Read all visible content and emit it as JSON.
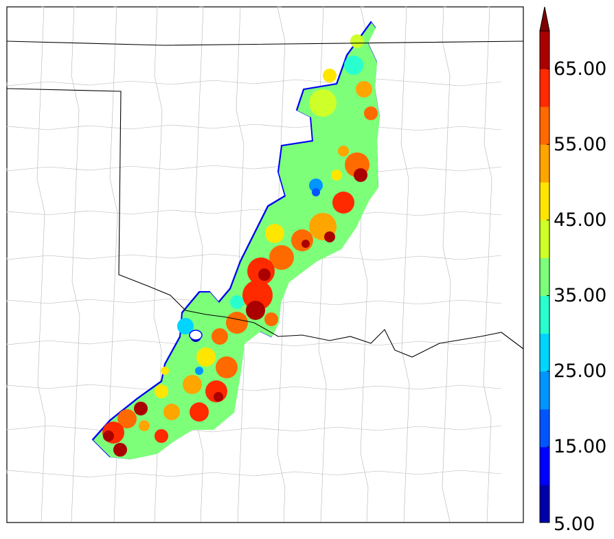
{
  "colorbar": {
    "tick_labels": [
      "5.00",
      "15.00",
      "25.00",
      "35.00",
      "45.00",
      "55.00",
      "65.00"
    ],
    "tick_values": [
      5,
      15,
      25,
      35,
      45,
      55,
      65
    ],
    "range": [
      5,
      70
    ],
    "extend": "max",
    "levels": [
      5,
      10,
      15,
      20,
      25,
      30,
      35,
      40,
      45,
      50,
      55,
      60,
      65,
      70
    ],
    "colors": [
      "#0000aa",
      "#0000ff",
      "#0055ff",
      "#0095ff",
      "#00d5ff",
      "#29ffce",
      "#7dff7a",
      "#ceff29",
      "#ffe600",
      "#ffa500",
      "#ff6a00",
      "#ff2a00",
      "#aa0000"
    ],
    "over_color": "#800000"
  },
  "map": {
    "background": "#ffffff",
    "state_border_color": "#000000",
    "county_border_color": "#b0b0b0",
    "field_cells": [
      {
        "value": 40
      },
      {
        "value": 35
      },
      {
        "value": 45
      },
      {
        "value": 55
      }
    ]
  }
}
